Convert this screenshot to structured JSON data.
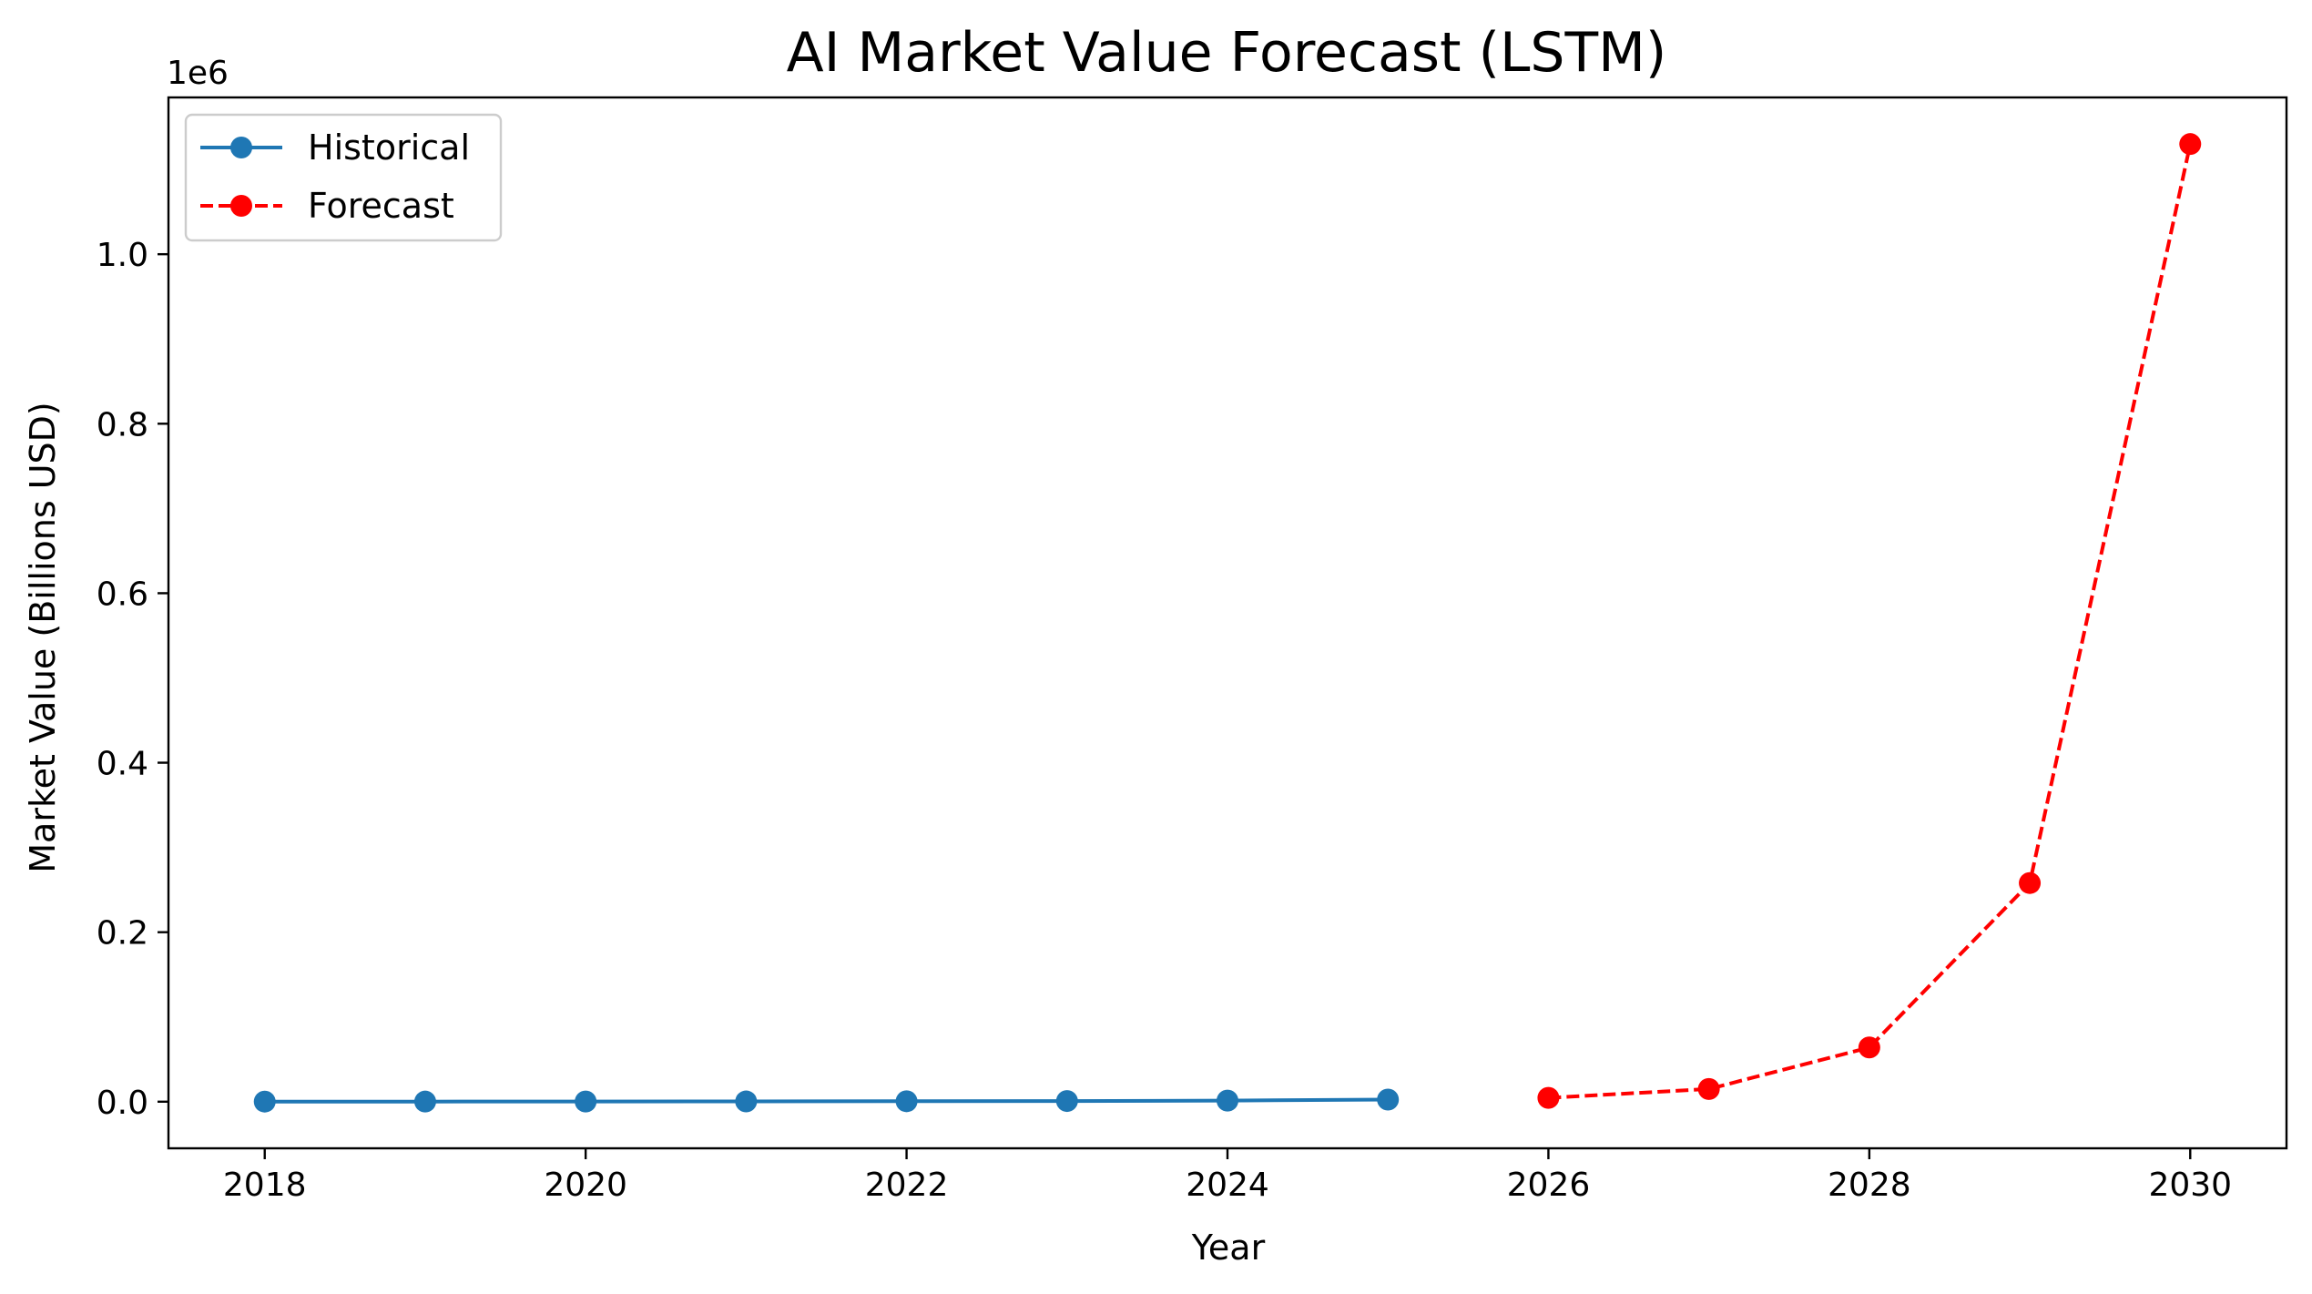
{
  "chart_data": {
    "type": "line",
    "title": "AI Market Value Forecast (LSTM)",
    "xlabel": "Year",
    "ylabel": "Market Value (Billions USD)",
    "y_offset_label": "1e6",
    "xlim": [
      2017.4,
      2030.6
    ],
    "ylim": [
      -55000,
      1185000
    ],
    "x_ticks": [
      2018,
      2020,
      2022,
      2024,
      2026,
      2028,
      2030
    ],
    "x_tick_labels": [
      "2018",
      "2020",
      "2022",
      "2024",
      "2026",
      "2028",
      "2030"
    ],
    "y_ticks": [
      0,
      200000,
      400000,
      600000,
      800000,
      1000000
    ],
    "y_tick_labels": [
      "0.0",
      "0.2",
      "0.4",
      "0.6",
      "0.8",
      "1.0"
    ],
    "grid": false,
    "legend_position": "top-left",
    "series": [
      {
        "name": "Historical",
        "color": "#1f77b4",
        "linestyle": "solid",
        "marker": "circle",
        "x": [
          2018,
          2019,
          2020,
          2021,
          2022,
          2023,
          2024,
          2025
        ],
        "y": [
          100,
          150,
          200,
          300,
          500,
          800,
          1300,
          2500
        ]
      },
      {
        "name": "Forecast",
        "color": "#ff0000",
        "linestyle": "dashed",
        "marker": "circle",
        "x": [
          2026,
          2027,
          2028,
          2029,
          2030
        ],
        "y": [
          4500,
          15000,
          64000,
          258000,
          1130000
        ]
      }
    ]
  }
}
